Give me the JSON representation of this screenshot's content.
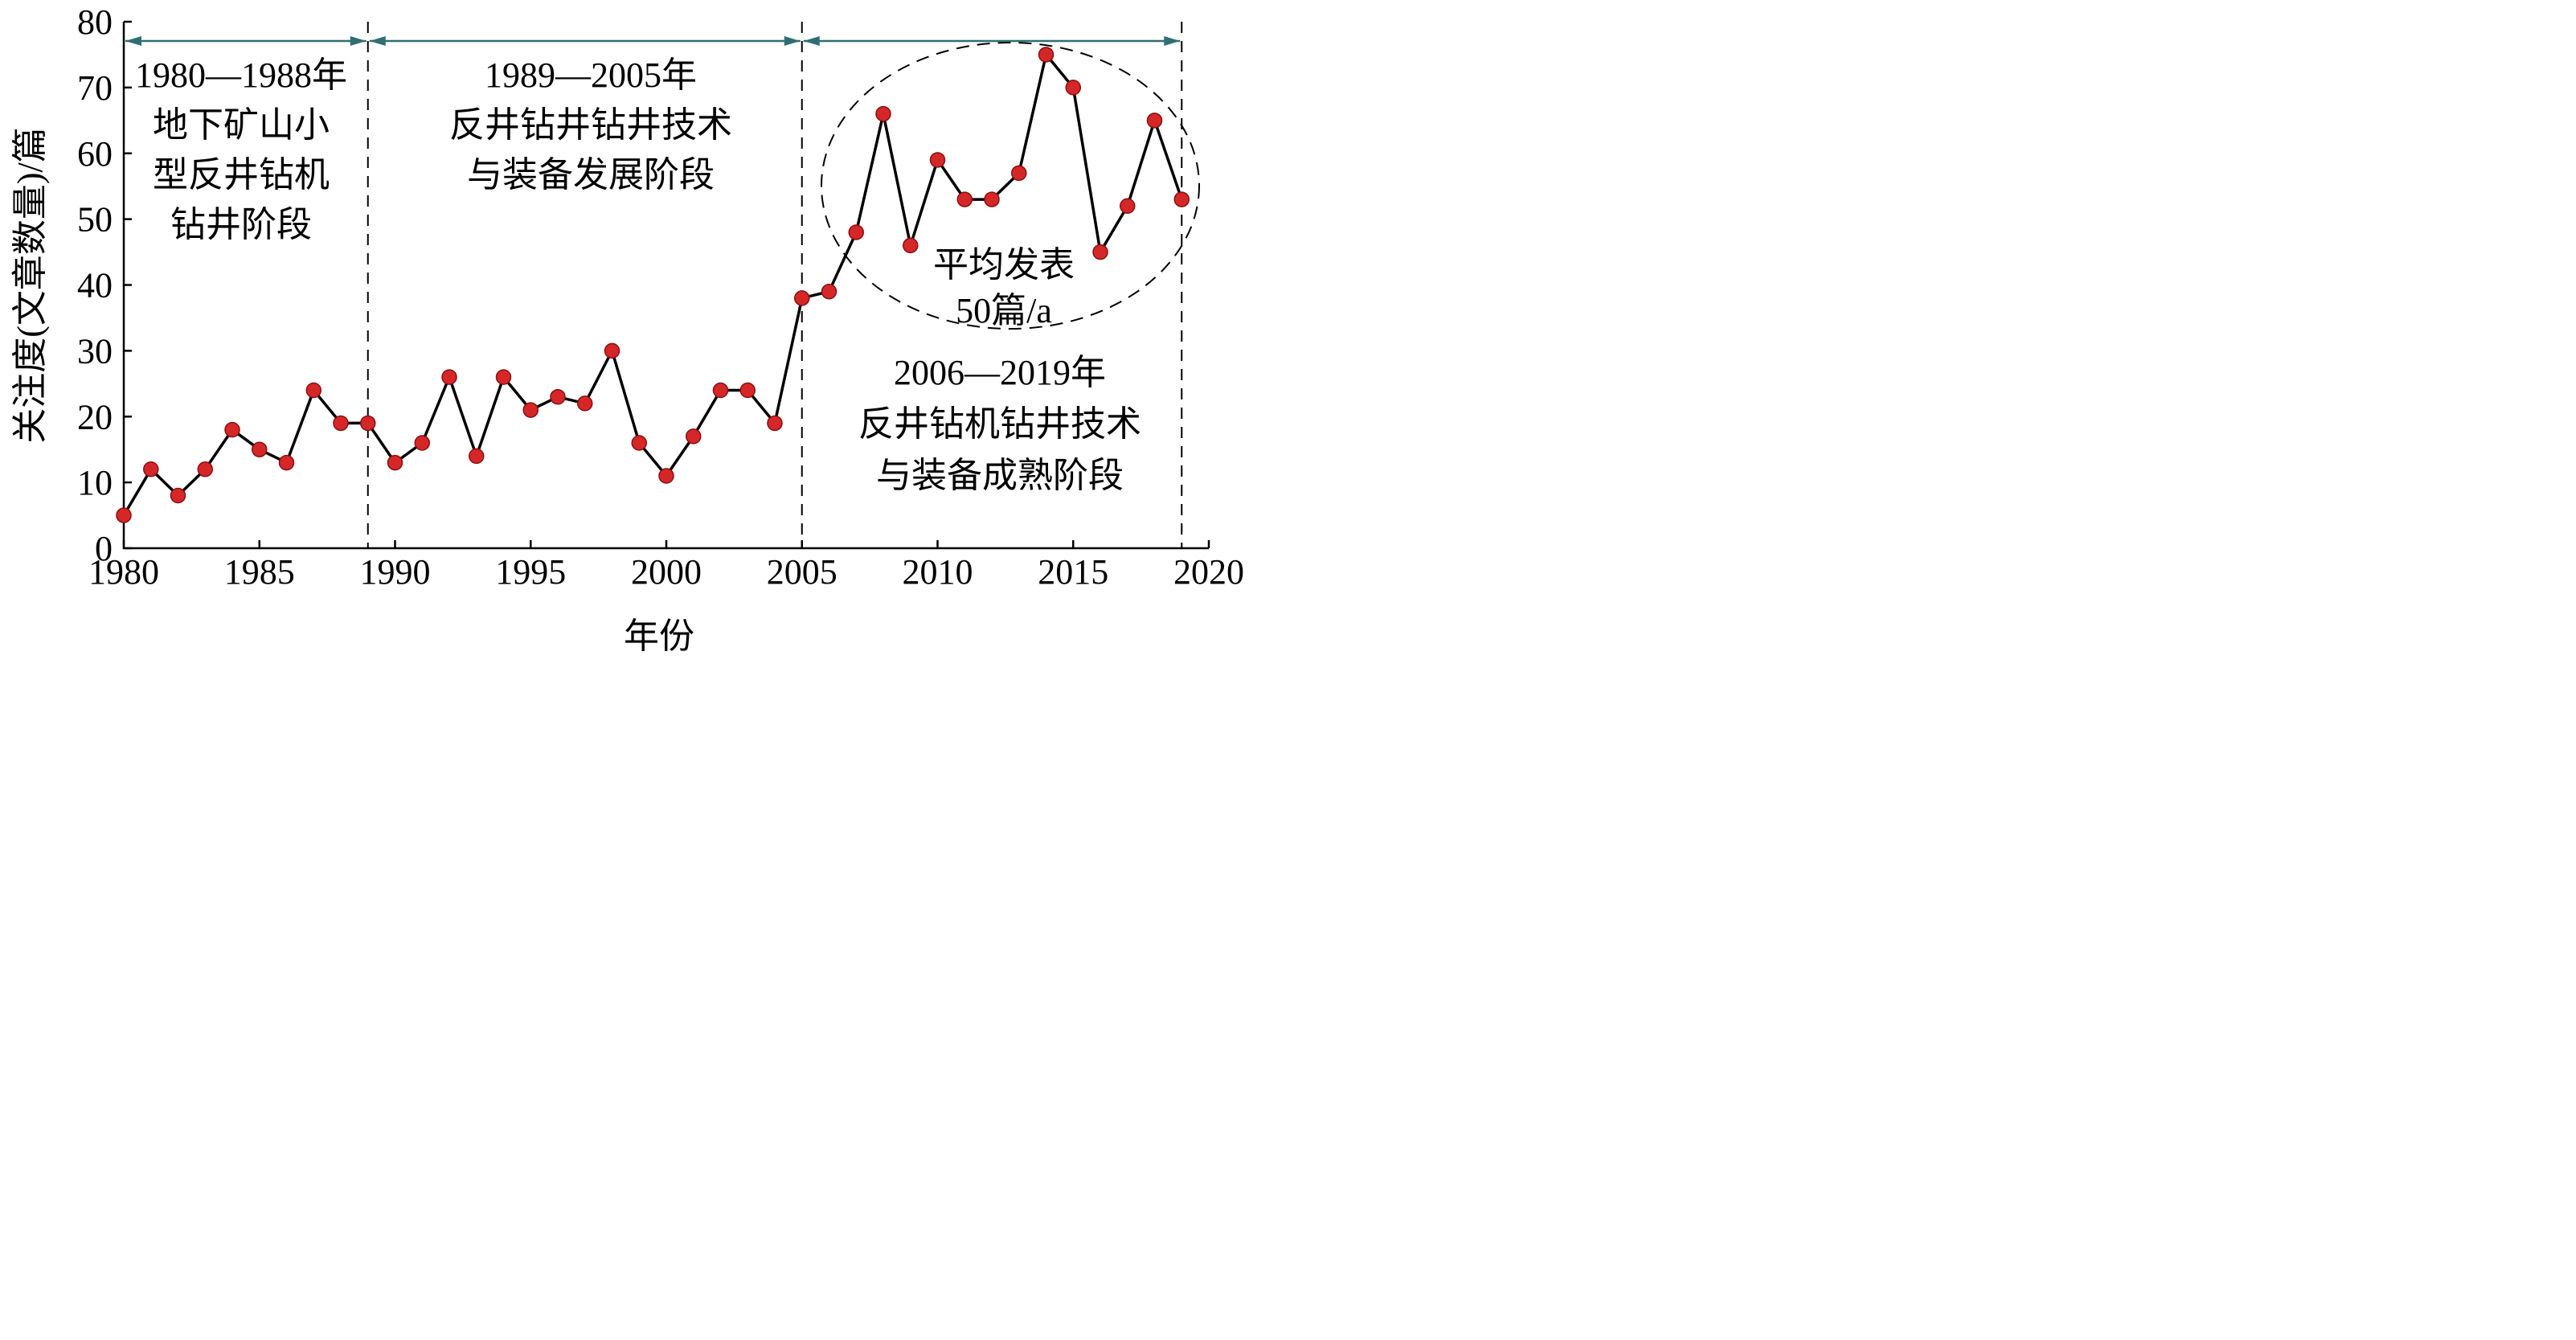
{
  "chart_data": {
    "type": "line",
    "title": "",
    "xlabel": "年份",
    "ylabel": "关注度(文章数量)/篇",
    "xlim": [
      1980,
      2020
    ],
    "ylim": [
      0,
      80
    ],
    "x_ticks": [
      1980,
      1985,
      1990,
      1995,
      2000,
      2005,
      2010,
      2015,
      2020
    ],
    "y_ticks": [
      0,
      10,
      20,
      30,
      40,
      50,
      60,
      70,
      80
    ],
    "grid": false,
    "legend": "none",
    "colors": {
      "line": "#000000",
      "marker": "#d62728",
      "marker_edge": "#8a1010",
      "span_arrow": "#2f6f73"
    },
    "series": [
      {
        "x": [
          1980,
          1981,
          1982,
          1983,
          1984,
          1985,
          1986,
          1987,
          1988,
          1989,
          1990,
          1991,
          1992,
          1993,
          1994,
          1995,
          1996,
          1997,
          1998,
          1999,
          2000,
          2001,
          2002,
          2003,
          2004,
          2005,
          2006,
          2007,
          2008,
          2009,
          2010,
          2011,
          2012,
          2013,
          2014,
          2015,
          2016,
          2017,
          2018,
          2019
        ],
        "values": [
          5,
          12,
          8,
          12,
          18,
          15,
          13,
          24,
          19,
          19,
          13,
          16,
          26,
          14,
          26,
          21,
          23,
          22,
          30,
          16,
          11,
          17,
          24,
          24,
          19,
          38,
          39,
          48,
          66,
          46,
          59,
          53,
          53,
          57,
          75,
          70,
          45,
          52,
          65,
          53
        ]
      }
    ],
    "phase_dividers": [
      1989,
      2005,
      2019
    ],
    "phases": [
      {
        "from": 1980,
        "to": 1989,
        "lines": [
          "1980—1988年",
          "地下矿山小",
          "型反井钻机",
          "钻井阶段"
        ]
      },
      {
        "from": 1989,
        "to": 2005,
        "lines": [
          "1989—2005年",
          "反井钻井钻井技术",
          "与装备发展阶段"
        ]
      },
      {
        "from": 2005,
        "to": 2019,
        "lines": [
          "2006—2019年",
          "反井钻机钻井技术",
          "与装备成熟阶段"
        ]
      }
    ],
    "annotation": {
      "lines": [
        "平均发表",
        "50篇/a"
      ]
    }
  }
}
